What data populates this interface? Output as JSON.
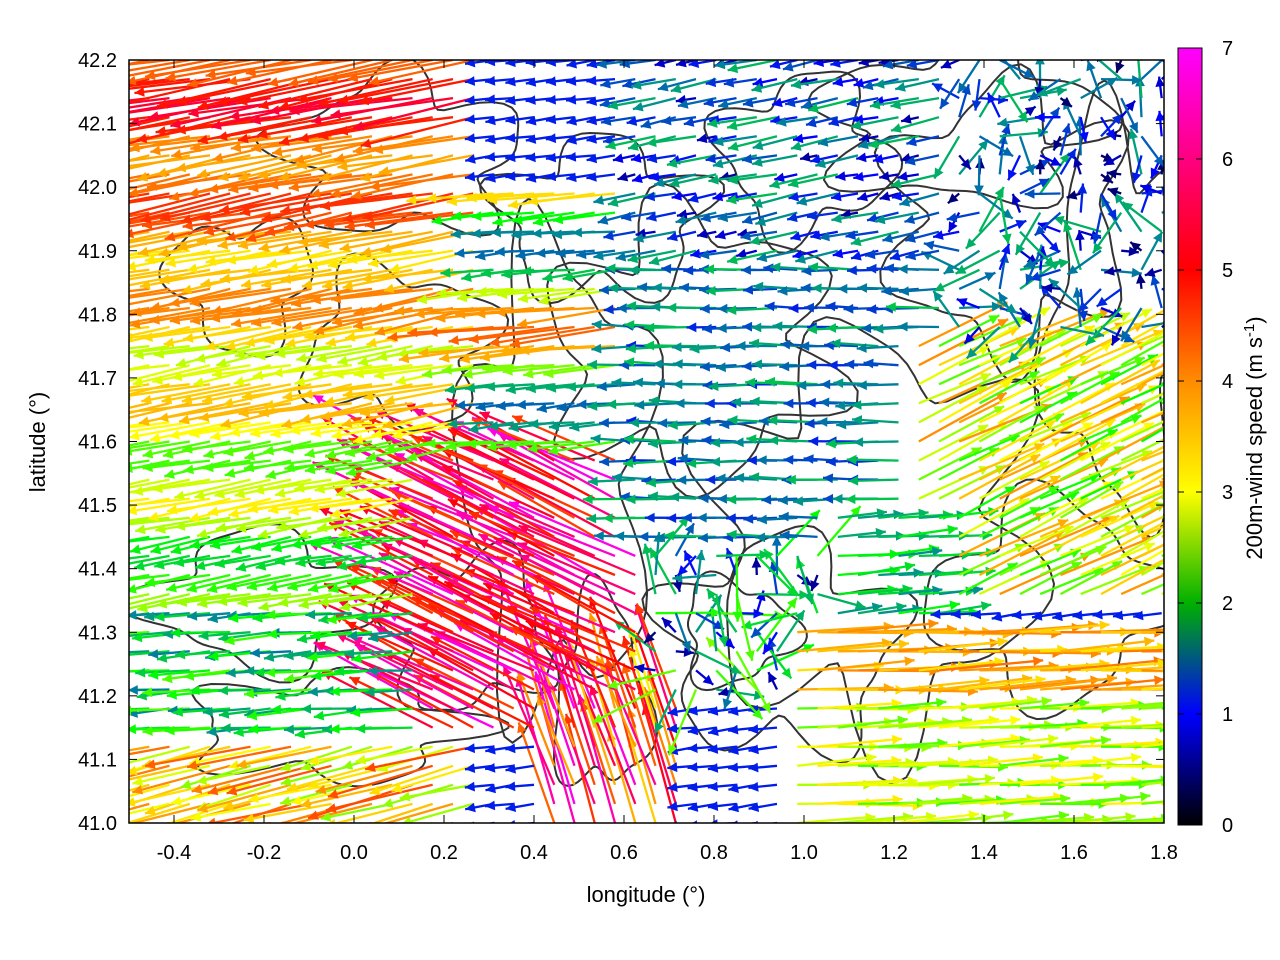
{
  "chart_data": {
    "type": "vector-field",
    "title": "",
    "xlabel": "longitude (°)",
    "ylabel": "latitude (°)",
    "xlim": [
      -0.5,
      1.8
    ],
    "ylim": [
      41.0,
      42.2
    ],
    "x_ticks": [
      "-0.4",
      "-0.2",
      "0.0",
      "0.2",
      "0.4",
      "0.6",
      "0.8",
      "1.0",
      "1.2",
      "1.4",
      "1.6",
      "1.8"
    ],
    "y_ticks": [
      "41.0",
      "41.1",
      "41.2",
      "41.3",
      "41.4",
      "41.5",
      "41.6",
      "41.7",
      "41.8",
      "41.9",
      "42.0",
      "42.1",
      "42.2"
    ],
    "colorbar": {
      "label_main": "200m-wind speed (m s",
      "label_sup": "-1",
      "label_end": ")",
      "range": [
        0,
        7
      ],
      "ticks": [
        "0",
        "1",
        "2",
        "3",
        "4",
        "5",
        "6",
        "7"
      ],
      "colormap": [
        "#000000",
        "#0000ff",
        "#008f8f",
        "#00ff00",
        "#ffff00",
        "#ff8c00",
        "#ff0000",
        "#ff00ff"
      ]
    },
    "contour_color": "#333333",
    "wind_regimes": [
      {
        "region": "west of 0.3, north of 41.35",
        "direction": "westward, slightly descending",
        "speed_range": [
          3,
          6
        ]
      },
      {
        "region": "0.2 to 0.6, 41.2 to 41.6",
        "direction": "west-north-westward",
        "speed_range": [
          5,
          7
        ]
      },
      {
        "region": "0.6 to 1.3, 41.5 to 41.9",
        "direction": "westward",
        "speed_range": [
          1,
          2.5
        ]
      },
      {
        "region": "0.9 to 1.8, 41.0 to 41.3",
        "direction": "eastward",
        "speed_range": [
          2,
          4.5
        ]
      },
      {
        "region": "1.3 to 1.8, 41.4 to 41.75",
        "direction": "north-eastward",
        "speed_range": [
          3,
          5
        ]
      },
      {
        "region": "0.6 to 1.8, 41.9 to 42.2",
        "direction": "variable",
        "speed_range": [
          0.5,
          2
        ]
      }
    ]
  }
}
